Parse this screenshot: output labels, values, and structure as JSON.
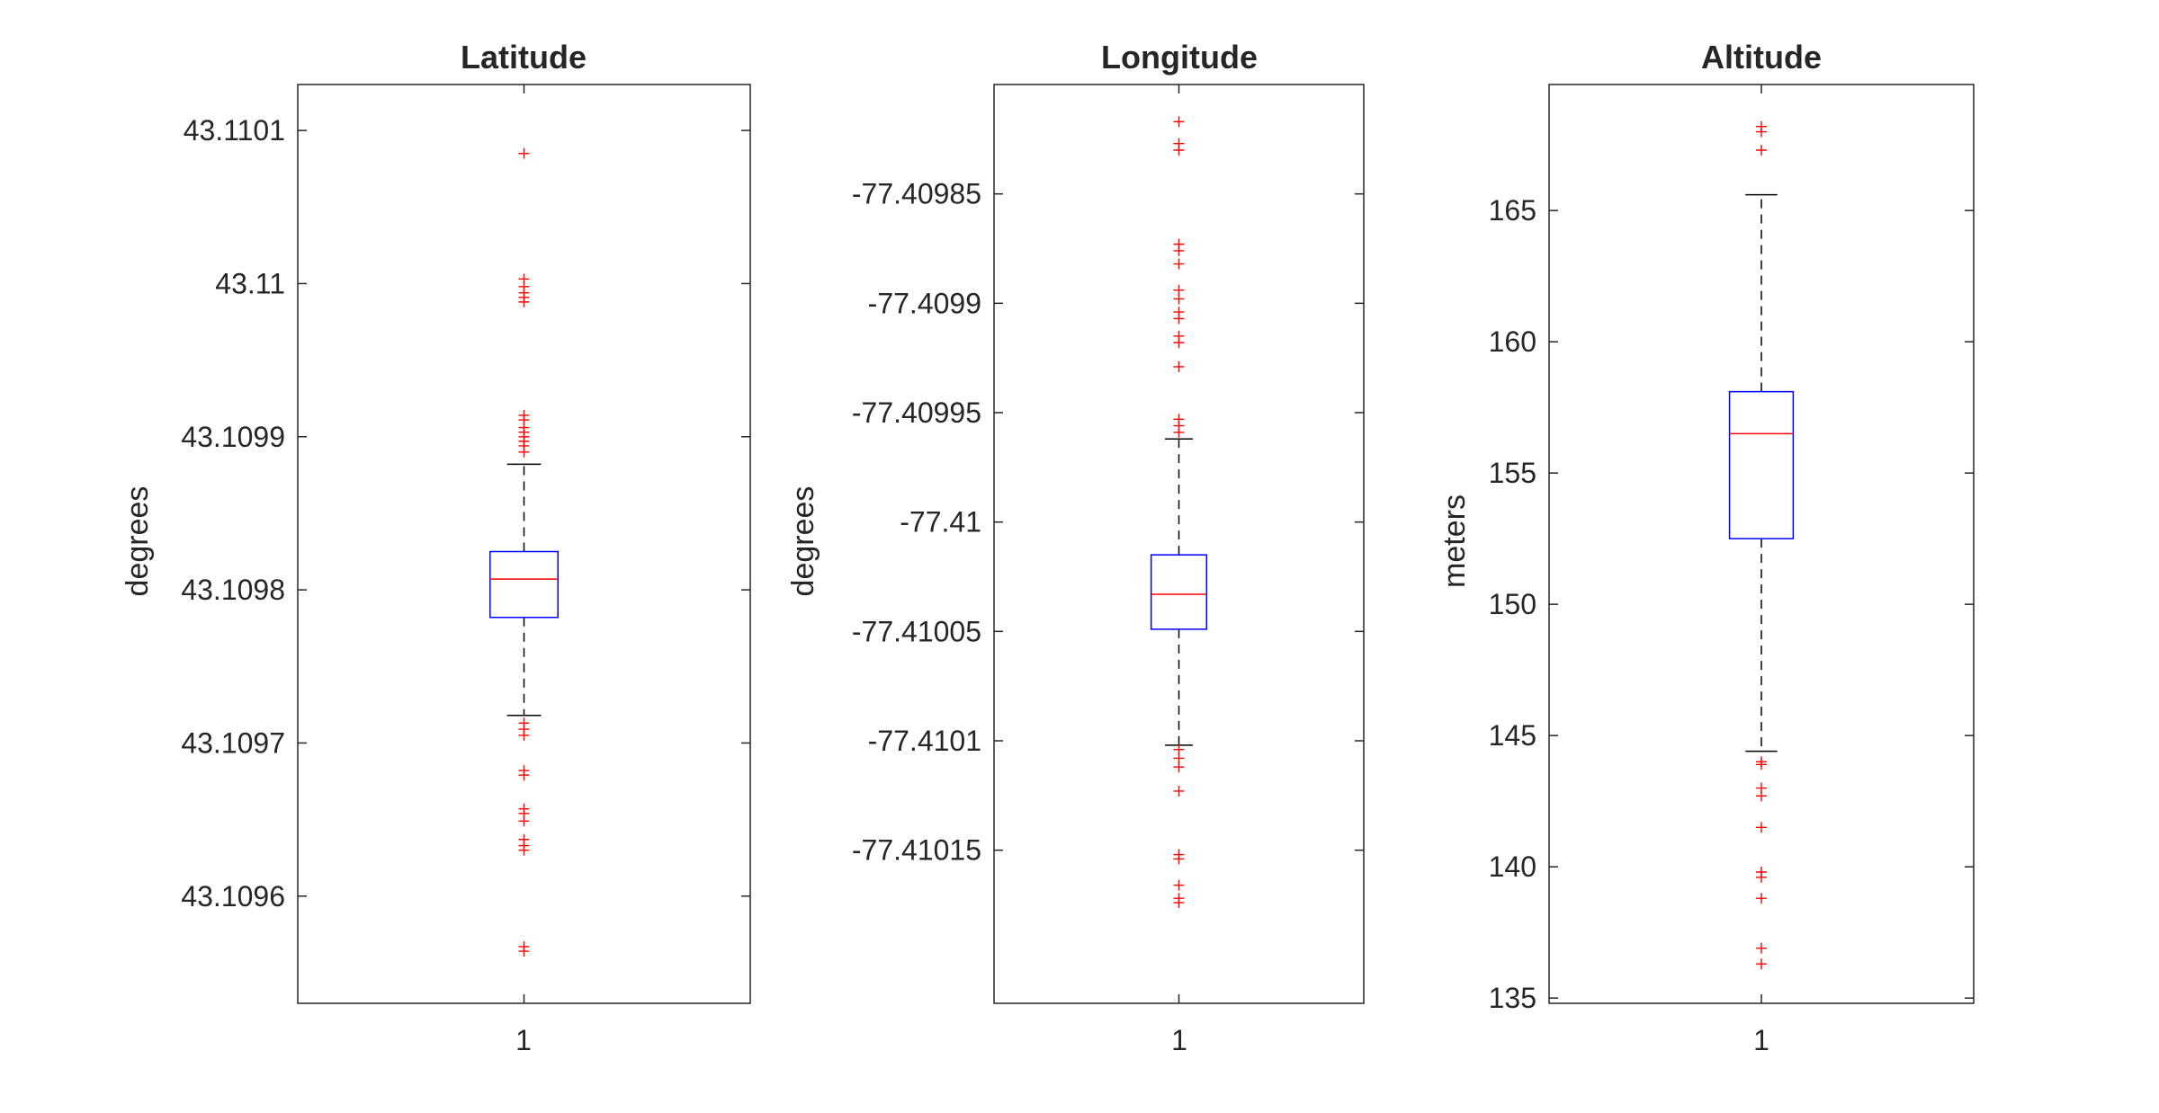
{
  "colors": {
    "box": "#0000ff",
    "median": "#ff0000",
    "outlier": "#ff0000",
    "whisker": "#000000",
    "axis": "#262626"
  },
  "chart_data": [
    {
      "type": "boxplot",
      "title": "Latitude",
      "ylabel": "degrees",
      "categories": [
        "1"
      ],
      "ylim": [
        43.10953,
        43.11013
      ],
      "yticks": [
        43.1096,
        43.1097,
        43.1098,
        43.1099,
        43.11,
        43.1101
      ],
      "yticklabels": [
        "43.1096",
        "43.1097",
        "43.1098",
        "43.1099",
        "43.11",
        "43.1101"
      ],
      "box": {
        "q1": 43.109782,
        "median": 43.109807,
        "q3": 43.109825,
        "whisker_low": 43.109718,
        "whisker_high": 43.109882
      },
      "outliers": [
        43.110085,
        43.110003,
        43.109998,
        43.109994,
        43.109991,
        43.109988,
        43.109914,
        43.109911,
        43.109906,
        43.109903,
        43.1099,
        43.109897,
        43.109894,
        43.10989,
        43.109713,
        43.109709,
        43.109705,
        43.109682,
        43.109679,
        43.109657,
        43.109654,
        43.109649,
        43.109637,
        43.109633,
        43.10963,
        43.109567,
        43.109564
      ]
    },
    {
      "type": "boxplot",
      "title": "Longitude",
      "ylabel": "degrees",
      "categories": [
        "1"
      ],
      "ylim": [
        -77.41022,
        -77.4098
      ],
      "yticks": [
        -77.41015,
        -77.4101,
        -77.41005,
        -77.41,
        -77.40995,
        -77.4099,
        -77.40985
      ],
      "yticklabels": [
        "-77.41015",
        "-77.4101",
        "-77.41005",
        "-77.41",
        "-77.40995",
        "-77.4099",
        "-77.40985"
      ],
      "box": {
        "q1": -77.410049,
        "median": -77.410033,
        "q3": -77.410015,
        "whisker_low": -77.410102,
        "whisker_high": -77.409962
      },
      "outliers": [
        -77.409817,
        -77.409827,
        -77.40983,
        -77.409873,
        -77.409876,
        -77.409882,
        -77.409894,
        -77.409898,
        -77.409904,
        -77.409907,
        -77.409915,
        -77.409918,
        -77.409929,
        -77.409953,
        -77.409956,
        -77.409959,
        -77.410104,
        -77.410108,
        -77.410112,
        -77.410123,
        -77.410152,
        -77.410154,
        -77.410166,
        -77.410172,
        -77.410174
      ]
    },
    {
      "type": "boxplot",
      "title": "Altitude",
      "ylabel": "meters",
      "categories": [
        "1"
      ],
      "ylim": [
        134.8,
        169.8
      ],
      "yticks": [
        135,
        140,
        145,
        150,
        155,
        160,
        165
      ],
      "yticklabels": [
        "135",
        "140",
        "145",
        "150",
        "155",
        "160",
        "165"
      ],
      "box": {
        "q1": 152.5,
        "median": 156.5,
        "q3": 158.1,
        "whisker_low": 144.4,
        "whisker_high": 165.6
      },
      "outliers": [
        168.2,
        168.0,
        167.3,
        144.0,
        143.9,
        143.0,
        142.7,
        141.5,
        139.8,
        139.6,
        138.8,
        136.9,
        136.3
      ]
    }
  ]
}
